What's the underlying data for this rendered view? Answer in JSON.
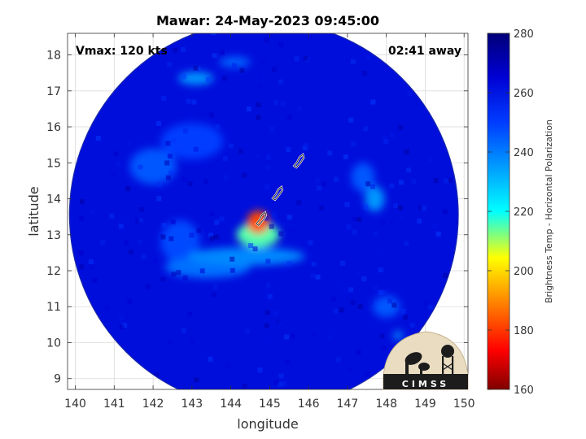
{
  "chart_data": {
    "type": "heatmap",
    "title": "Mawar: 24-May-2023 09:45:00",
    "xlabel": "longitude",
    "ylabel": "latitude",
    "xlim": [
      139.8,
      150.1
    ],
    "ylim": [
      8.7,
      18.6
    ],
    "x_ticks": [
      140,
      141,
      142,
      143,
      144,
      145,
      146,
      147,
      148,
      149,
      150
    ],
    "y_ticks": [
      9,
      10,
      11,
      12,
      13,
      14,
      15,
      16,
      17,
      18
    ],
    "grid": true,
    "annotations": {
      "vmax": "Vmax: 120 kts",
      "away": "02:41 away"
    },
    "swath": {
      "center_lon": 144.85,
      "center_lat": 13.55,
      "radius_deg": 5.0
    },
    "background_level": 262,
    "storm_center": {
      "lon": 144.7,
      "lat": 13.3
    },
    "features": [
      {
        "lon": 144.7,
        "lat": 13.35,
        "level": 182,
        "sx": 0.28,
        "sy": 0.32
      },
      {
        "lon": 144.7,
        "lat": 13.0,
        "level": 215,
        "sx": 0.55,
        "sy": 0.35
      },
      {
        "lon": 144.4,
        "lat": 12.4,
        "level": 238,
        "sx": 1.5,
        "sy": 0.25
      },
      {
        "lon": 143.4,
        "lat": 12.1,
        "level": 242,
        "sx": 1.1,
        "sy": 0.3
      },
      {
        "lon": 142.0,
        "lat": 14.9,
        "level": 246,
        "sx": 0.6,
        "sy": 0.5
      },
      {
        "lon": 147.7,
        "lat": 14.0,
        "level": 236,
        "sx": 0.25,
        "sy": 0.35
      },
      {
        "lon": 147.4,
        "lat": 14.6,
        "level": 246,
        "sx": 0.3,
        "sy": 0.4
      },
      {
        "lon": 143.1,
        "lat": 17.35,
        "level": 236,
        "sx": 0.45,
        "sy": 0.18
      },
      {
        "lon": 144.1,
        "lat": 17.8,
        "level": 244,
        "sx": 0.4,
        "sy": 0.15
      },
      {
        "lon": 148.0,
        "lat": 11.0,
        "level": 246,
        "sx": 0.35,
        "sy": 0.3
      },
      {
        "lon": 148.3,
        "lat": 10.2,
        "level": 236,
        "sx": 0.12,
        "sy": 0.12
      },
      {
        "lon": 143.0,
        "lat": 15.6,
        "level": 250,
        "sx": 0.8,
        "sy": 0.5
      },
      {
        "lon": 142.7,
        "lat": 12.8,
        "level": 248,
        "sx": 0.5,
        "sy": 0.6
      }
    ],
    "colorbar": {
      "label": "Brightness Temp - Horizontal Polarization",
      "min": 160,
      "max": 280,
      "ticks": [
        160,
        180,
        200,
        220,
        240,
        260,
        280
      ]
    },
    "islands": [
      {
        "name": "Guam",
        "lon": 144.78,
        "lat": 13.44
      },
      {
        "name": "Rota",
        "lon": 145.2,
        "lat": 14.15
      },
      {
        "name": "Saipan/Tinian",
        "lon": 145.75,
        "lat": 15.05
      }
    ]
  },
  "logo": {
    "text": "CIMSS"
  }
}
